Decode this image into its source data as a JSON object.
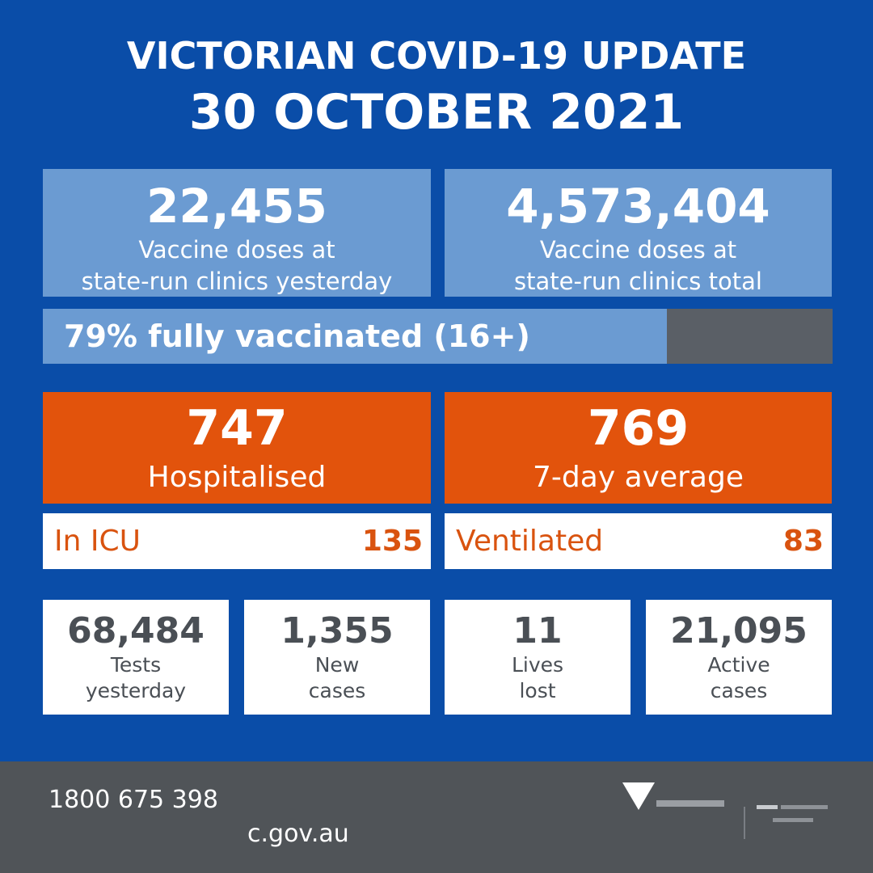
{
  "header": {
    "title": "VICTORIAN COVID-19 UPDATE",
    "date": "30 OCTOBER 2021"
  },
  "vaccines": {
    "yesterday": {
      "value": "22,455",
      "label_line1": "Vaccine doses at",
      "label_line2": "state-run clinics yesterday"
    },
    "total": {
      "value": "4,573,404",
      "label_line1": "Vaccine doses at",
      "label_line2": "state-run clinics total"
    },
    "fully_vaccinated": {
      "text": "79% fully vaccinated (16+)",
      "percent": 79
    }
  },
  "hospital": {
    "hospitalised": {
      "value": "747",
      "label": "Hospitalised"
    },
    "average": {
      "value": "769",
      "label": "7-day average"
    },
    "icu": {
      "label": "In ICU",
      "value": "135"
    },
    "ventilated": {
      "label": "Ventilated",
      "value": "83"
    }
  },
  "stats": [
    {
      "value": "68,484",
      "line1": "Tests",
      "line2": "yesterday"
    },
    {
      "value": "1,355",
      "line1": "New",
      "line2": "cases"
    },
    {
      "value": "11",
      "line1": "Lives",
      "line2": "lost"
    },
    {
      "value": "21,095",
      "line1": "Active",
      "line2": "cases"
    }
  ],
  "footer": {
    "phone": "1800 675 398",
    "url": "c.gov.au"
  },
  "colors": {
    "background": "#0a4da8",
    "vaccine_box": "#6b9bd2",
    "hospital_box": "#e2530c",
    "footer": "#505458"
  }
}
